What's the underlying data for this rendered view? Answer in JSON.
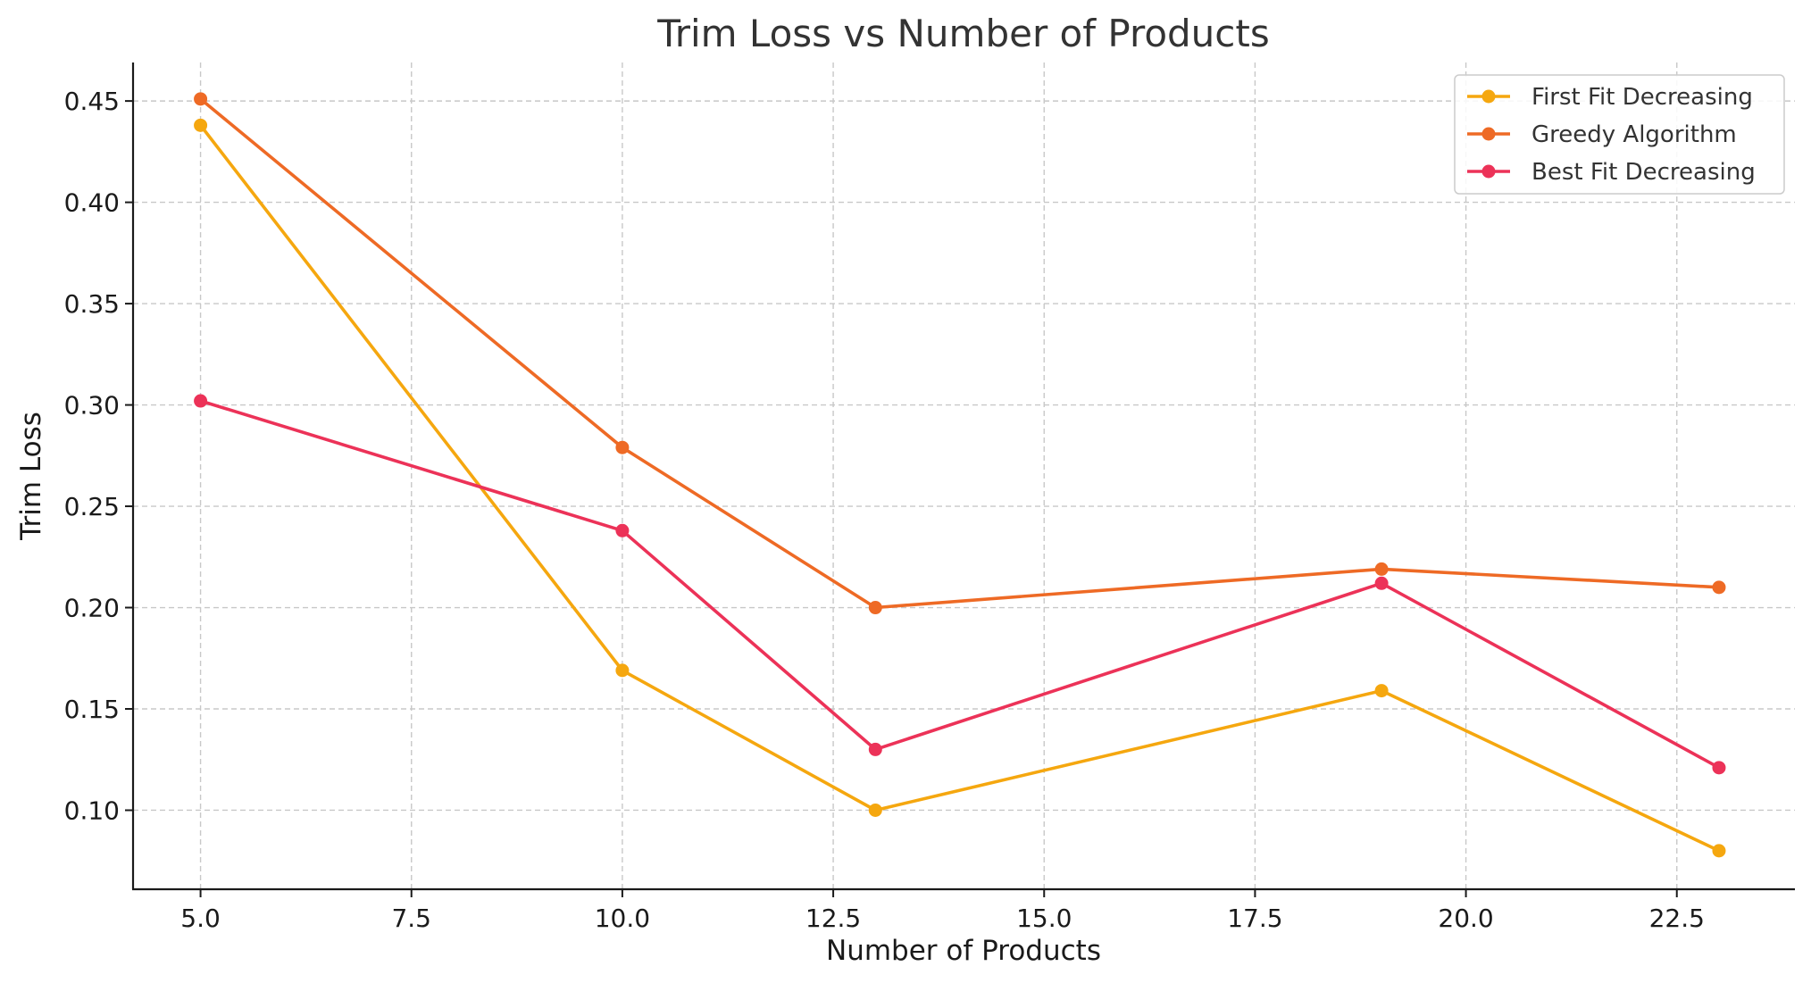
{
  "chart_data": {
    "type": "line",
    "title": "Trim Loss vs Number of Products",
    "xlabel": "Number of Products",
    "ylabel": "Trim Loss",
    "xlim": [
      4.2,
      23.9
    ],
    "ylim": [
      0.061,
      0.469
    ],
    "xticks": [
      5.0,
      7.5,
      10.0,
      12.5,
      15.0,
      17.5,
      20.0,
      22.5
    ],
    "xtick_labels": [
      "5.0",
      "7.5",
      "10.0",
      "12.5",
      "15.0",
      "17.5",
      "20.0",
      "22.5"
    ],
    "yticks": [
      0.1,
      0.15,
      0.2,
      0.25,
      0.3,
      0.35,
      0.4,
      0.45
    ],
    "ytick_labels": [
      "0.10",
      "0.15",
      "0.20",
      "0.25",
      "0.30",
      "0.35",
      "0.40",
      "0.45"
    ],
    "grid": true,
    "legend_position": "top-right",
    "x": [
      5,
      10,
      13,
      19,
      23
    ],
    "series": [
      {
        "name": "First Fit Decreasing",
        "color": "#F5A70F",
        "values": [
          0.438,
          0.169,
          0.1,
          0.159,
          0.08
        ]
      },
      {
        "name": "Greedy Algorithm",
        "color": "#EE6A25",
        "values": [
          0.451,
          0.279,
          0.2,
          0.219,
          0.21
        ]
      },
      {
        "name": "Best Fit Decreasing",
        "color": "#EC3258",
        "values": [
          0.302,
          0.238,
          0.13,
          0.212,
          0.121
        ]
      }
    ]
  }
}
